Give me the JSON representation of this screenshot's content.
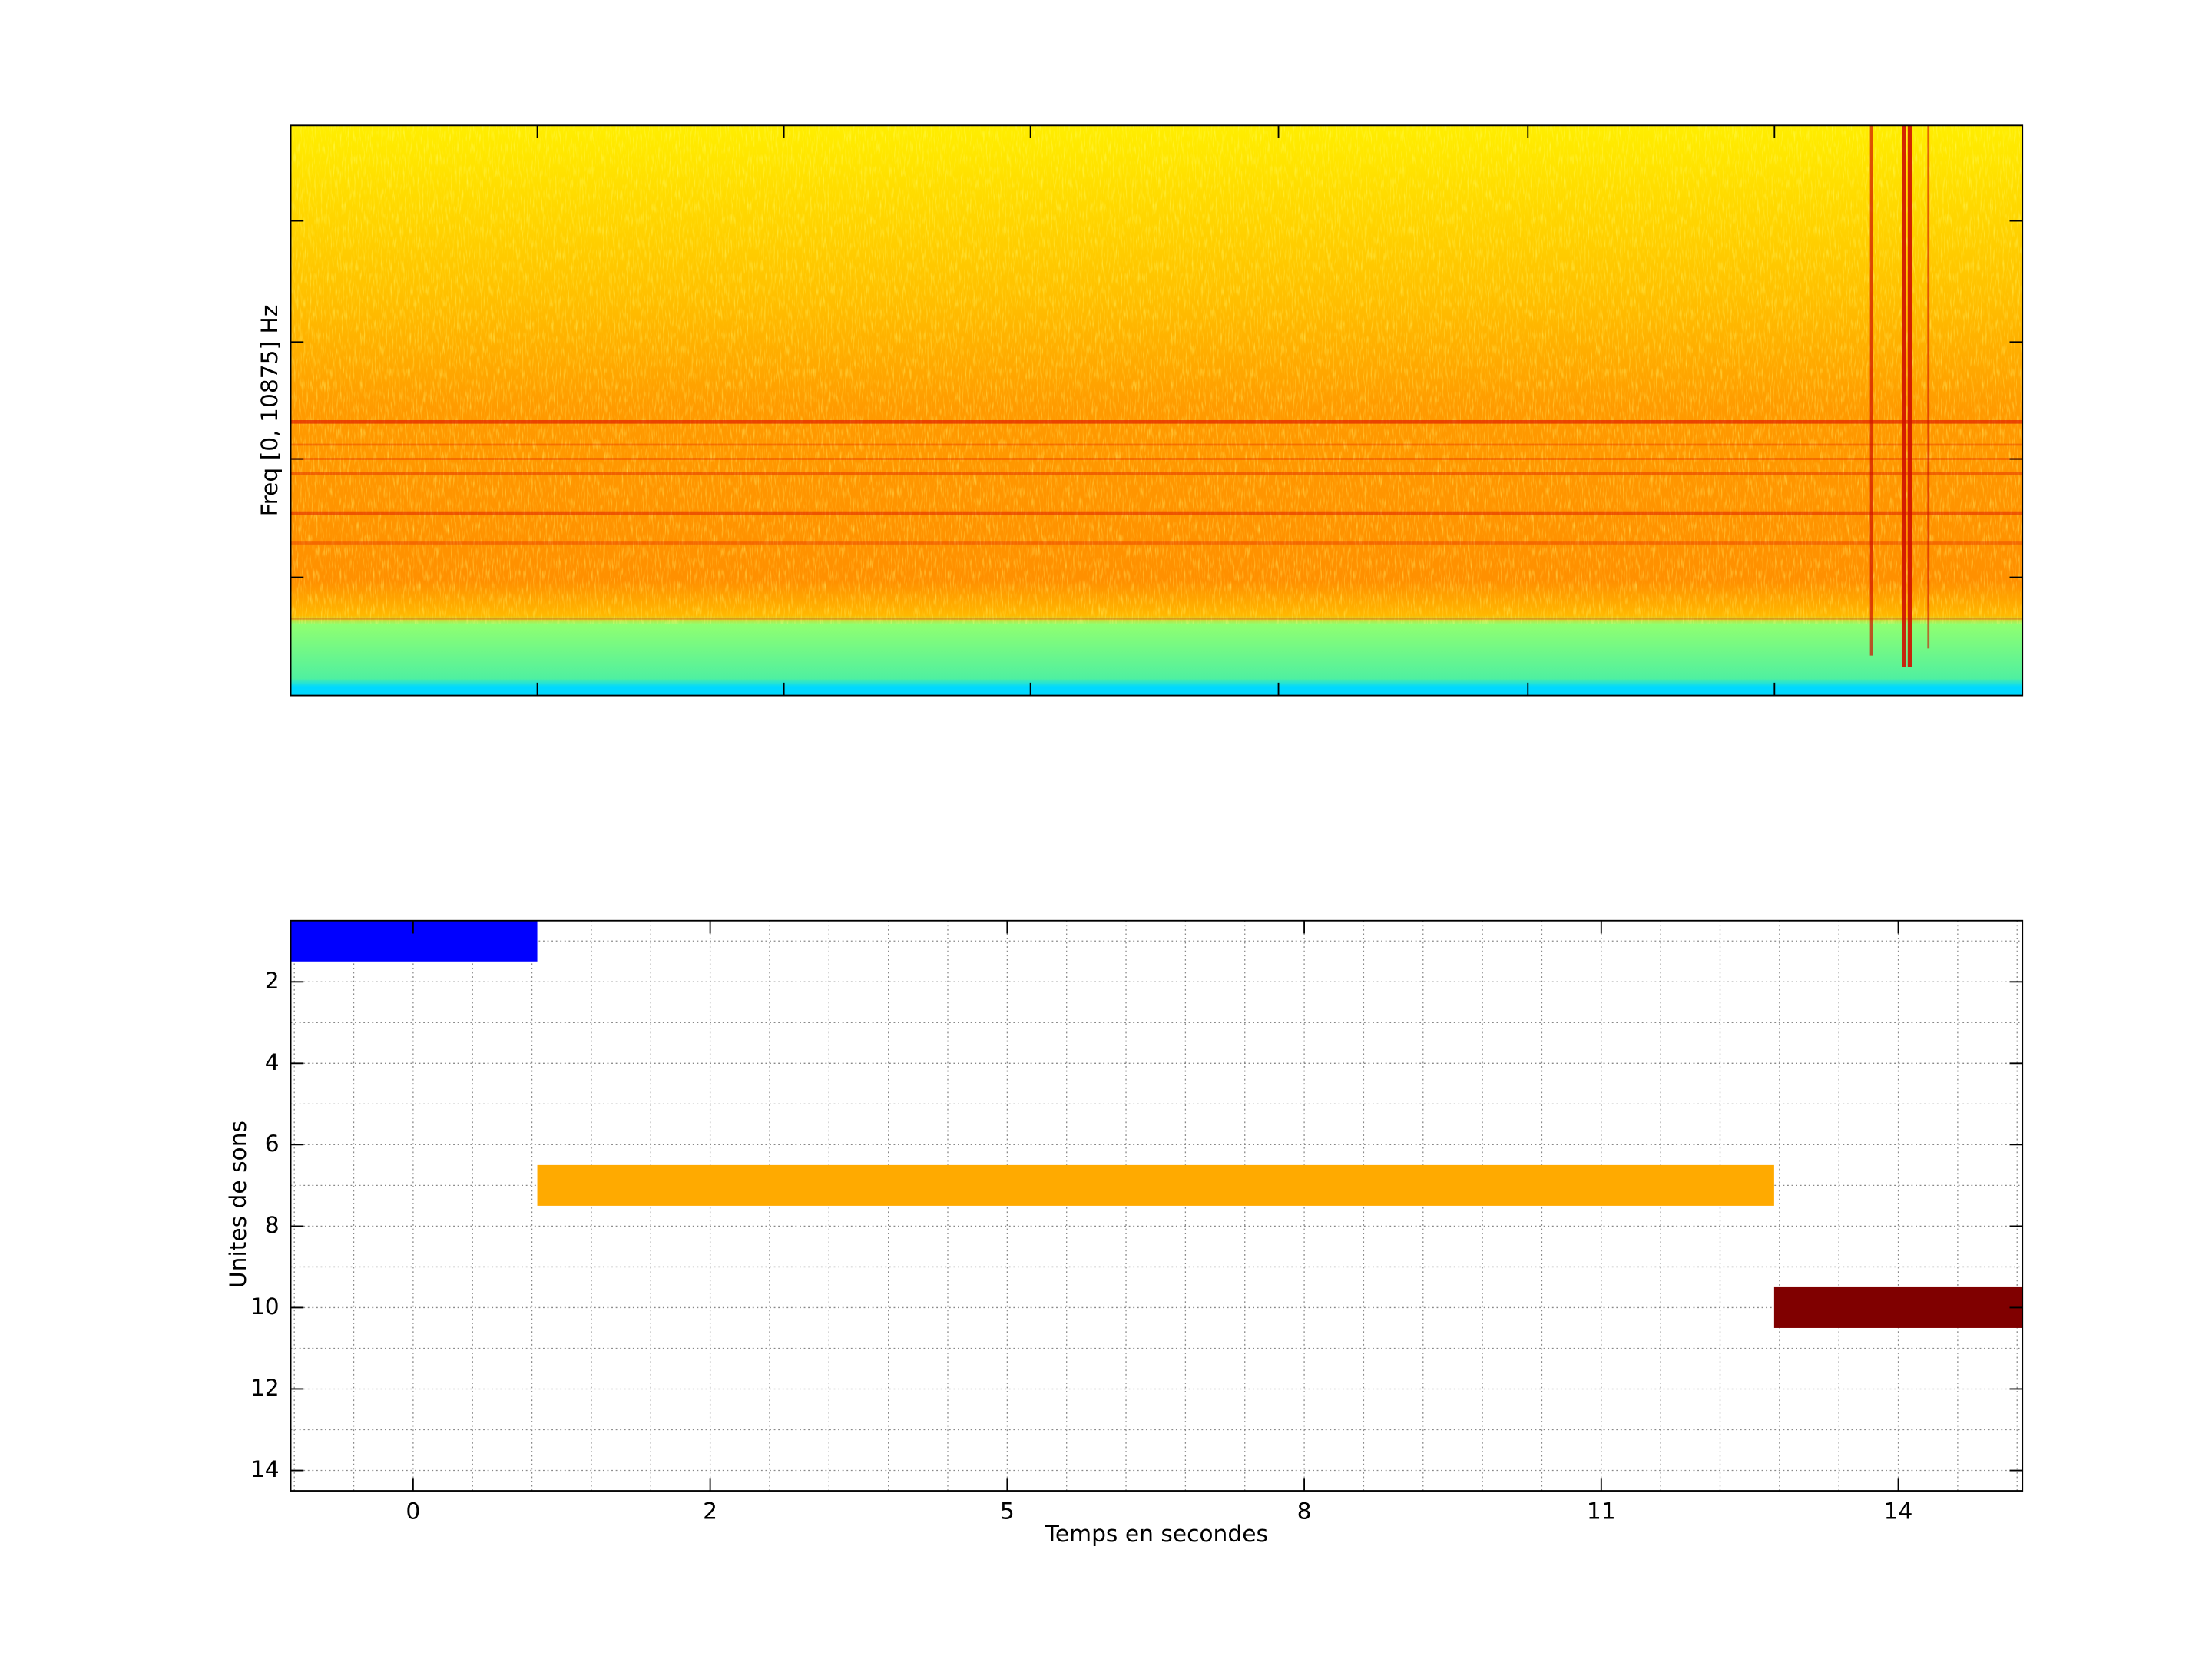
{
  "chart_data": [
    {
      "type": "spectrogram",
      "ylabel": "Freq [0, 10875] Hz"
    },
    {
      "type": "timeline",
      "xlabel": "Temps en secondes",
      "ylabel": "Unites de sons",
      "xlim": [
        -1.06,
        28.09
      ],
      "xticks": [
        {
          "value": 1,
          "label": "0"
        },
        {
          "value": 6,
          "label": "2"
        },
        {
          "value": 11,
          "label": "5"
        },
        {
          "value": 16,
          "label": "8"
        },
        {
          "value": 21,
          "label": "11"
        },
        {
          "value": 26,
          "label": "14"
        }
      ],
      "xminorticks": [
        -1,
        0,
        1,
        2,
        3,
        4,
        5,
        6,
        7,
        8,
        9,
        10,
        11,
        12,
        13,
        14,
        15,
        16,
        17,
        18,
        19,
        20,
        21,
        22,
        23,
        24,
        25,
        26,
        27,
        28
      ],
      "ylim": [
        0.5,
        14.5
      ],
      "y_reversed": true,
      "yticks": [
        2,
        4,
        6,
        8,
        10,
        12,
        14
      ],
      "yminorticks": [
        1,
        2,
        3,
        4,
        5,
        6,
        7,
        8,
        9,
        10,
        11,
        12,
        13,
        14
      ],
      "grid": true,
      "bars": [
        {
          "y": 1,
          "start": -1.06,
          "end": 3.09,
          "color": "#0000ff"
        },
        {
          "y": 7,
          "start": 3.09,
          "end": 23.91,
          "color": "#ffaa00"
        },
        {
          "y": 10,
          "start": 23.91,
          "end": 28.09,
          "color": "#800000"
        }
      ]
    }
  ]
}
